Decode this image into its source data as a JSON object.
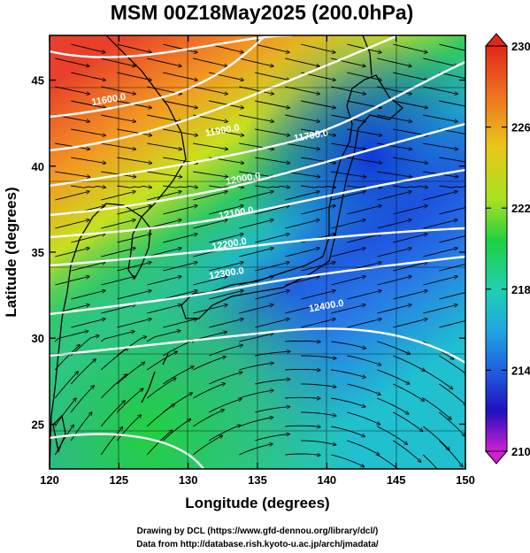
{
  "title": "MSM 00Z18May2025 (200.0hPa)",
  "xlabel": "Longitude (degrees)",
  "ylabel": "Latitude  (degrees)",
  "credit_line1": "Drawing by DCL (https://www.gfd-dennou.org/library/dcl/)",
  "credit_line2": "Data from http://database.rish.kyoto-u.ac.jp/arch/jmadata/",
  "chart_data": {
    "type": "heatmap",
    "x_ticks": [
      120,
      125,
      130,
      135,
      140,
      145,
      150
    ],
    "y_ticks": [
      25,
      30,
      35,
      40,
      45
    ],
    "xlim": [
      120,
      150
    ],
    "ylim": [
      22.4,
      47.6
    ],
    "colorbar": {
      "ticks": [
        230,
        226,
        222,
        218,
        214,
        210
      ],
      "range": [
        210,
        230
      ],
      "unit": ""
    },
    "contour_labels": [
      {
        "text": "11600.0",
        "lon": 124.3,
        "lat": 43.7
      },
      {
        "text": "11900.0",
        "lon": 132.5,
        "lat": 41.9
      },
      {
        "text": "11700.0",
        "lon": 138.9,
        "lat": 41.6
      },
      {
        "text": "12000.0",
        "lon": 134.0,
        "lat": 39.1
      },
      {
        "text": "12100.0",
        "lon": 133.5,
        "lat": 37.1
      },
      {
        "text": "12200.0",
        "lon": 133.0,
        "lat": 35.3
      },
      {
        "text": "12300.0",
        "lon": 132.8,
        "lat": 33.6
      },
      {
        "text": "12400.0",
        "lon": 140.0,
        "lat": 31.7
      }
    ],
    "colors": {
      "warm": "#e8402a",
      "mid": "#35c85a",
      "cool": "#1f50e0"
    }
  }
}
